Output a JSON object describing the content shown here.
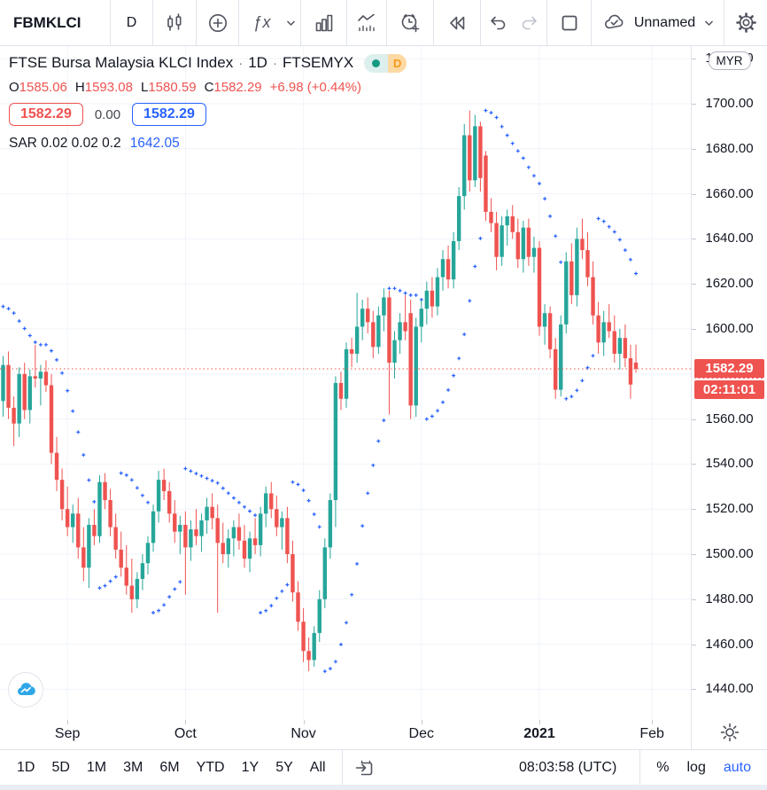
{
  "toolbar_top": {
    "symbol": "FBMKLCI",
    "interval": "D",
    "layout_name": "Unnamed",
    "icons": [
      "candlestick-style-icon",
      "compare-add-icon",
      "indicators-fx-icon",
      "chevron-down-icon",
      "indicator-templates-icon",
      "chart-patterns-icon",
      "alert-clock-plus-icon",
      "bar-replay-icon",
      "undo-icon",
      "redo-icon",
      "layout-square-icon",
      "cloud-save-icon",
      "settings-gear-icon"
    ]
  },
  "legend": {
    "title": "FTSE Bursa Malaysia KLCI Index",
    "sep": "·",
    "interval_label": "1D",
    "exchange": "FTSEMYX",
    "status_badge": {
      "letter": "D"
    },
    "ohlc": {
      "o_label": "O",
      "o": "1585.06",
      "h_label": "H",
      "h": "1593.08",
      "l_label": "L",
      "l": "1580.59",
      "c_label": "C",
      "c": "1582.29",
      "change": "+6.98 (+0.44%)"
    },
    "quote_boxes": {
      "sell": "1582.29",
      "spread": "0.00",
      "buy": "1582.29"
    },
    "indicator": {
      "name": "SAR",
      "params": "0.02 0.02 0.2",
      "value": "1642.05"
    }
  },
  "price_axis": {
    "currency_badge": "MYR",
    "ticks": [
      "1440.00",
      "1460.00",
      "1480.00",
      "1500.00",
      "1520.00",
      "1540.00",
      "1560.00",
      "1580.00",
      "1600.00",
      "1620.00",
      "1640.00",
      "1660.00",
      "1680.00",
      "1700.00",
      "1720.00"
    ],
    "hidden_ticks": [
      "1580.00"
    ],
    "last_price": "1582.29",
    "countdown": "02:11:01"
  },
  "toolbar_bottom": {
    "ranges": [
      "1D",
      "5D",
      "1M",
      "3M",
      "6M",
      "YTD",
      "1Y",
      "5Y",
      "All"
    ],
    "clock": "08:03:58 (UTC)",
    "percent": "%",
    "log": "log",
    "auto": "auto"
  },
  "chart_data": {
    "type": "candlestick",
    "title": "FTSE Bursa Malaysia KLCI Index",
    "interval": "1D",
    "exchange": "FTSEMYX",
    "currency": "MYR",
    "ylim": [
      1435,
      1725
    ],
    "yticks": [
      1440,
      1460,
      1480,
      1500,
      1520,
      1540,
      1560,
      1580,
      1600,
      1620,
      1640,
      1660,
      1680,
      1700,
      1720
    ],
    "grid": true,
    "last_price": 1582.29,
    "change": 6.98,
    "change_pct": 0.44,
    "months": [
      {
        "label": "Sep",
        "index": 12
      },
      {
        "label": "Oct",
        "index": 34
      },
      {
        "label": "Nov",
        "index": 56
      },
      {
        "label": "Dec",
        "index": 78
      },
      {
        "label": "2021",
        "index": 100,
        "bold": true
      },
      {
        "label": "Feb",
        "index": 121
      }
    ],
    "indicator": {
      "name": "Parabolic SAR",
      "start": 0.02,
      "increment": 0.02,
      "max": 0.2,
      "last_value": 1642.05
    },
    "colors": {
      "up": "#26a69a",
      "down": "#ef5350",
      "sar": "#2962ff",
      "grid": "#f0f3fa",
      "price_line": "#ef5350"
    },
    "candles": [
      [
        1568,
        1588,
        1561,
        1584
      ],
      [
        1584,
        1590,
        1560,
        1565
      ],
      [
        1565,
        1570,
        1548,
        1558
      ],
      [
        1558,
        1583,
        1552,
        1580
      ],
      [
        1580,
        1585,
        1560,
        1564
      ],
      [
        1564,
        1582,
        1558,
        1579
      ],
      [
        1579,
        1593,
        1574,
        1578
      ],
      [
        1578,
        1584,
        1566,
        1581
      ],
      [
        1581,
        1586,
        1572,
        1575
      ],
      [
        1575,
        1580,
        1540,
        1545
      ],
      [
        1545,
        1552,
        1528,
        1533
      ],
      [
        1533,
        1538,
        1515,
        1520
      ],
      [
        1520,
        1530,
        1508,
        1512
      ],
      [
        1512,
        1522,
        1505,
        1518
      ],
      [
        1518,
        1525,
        1498,
        1503
      ],
      [
        1503,
        1512,
        1488,
        1494
      ],
      [
        1494,
        1516,
        1485,
        1513
      ],
      [
        1513,
        1520,
        1504,
        1508
      ],
      [
        1508,
        1535,
        1505,
        1532
      ],
      [
        1532,
        1536,
        1520,
        1524
      ],
      [
        1524,
        1529,
        1508,
        1512
      ],
      [
        1512,
        1518,
        1498,
        1502
      ],
      [
        1502,
        1510,
        1490,
        1494
      ],
      [
        1494,
        1504,
        1482,
        1486
      ],
      [
        1486,
        1498,
        1474,
        1480
      ],
      [
        1480,
        1492,
        1476,
        1489
      ],
      [
        1489,
        1500,
        1484,
        1496
      ],
      [
        1496,
        1508,
        1491,
        1505
      ],
      [
        1505,
        1522,
        1501,
        1519
      ],
      [
        1519,
        1537,
        1514,
        1533
      ],
      [
        1533,
        1538,
        1524,
        1528
      ],
      [
        1528,
        1532,
        1514,
        1518
      ],
      [
        1518,
        1524,
        1505,
        1510
      ],
      [
        1510,
        1517,
        1500,
        1513
      ],
      [
        1513,
        1519,
        1482,
        1503
      ],
      [
        1503,
        1515,
        1497,
        1511
      ],
      [
        1511,
        1520,
        1504,
        1508
      ],
      [
        1508,
        1518,
        1501,
        1515
      ],
      [
        1515,
        1525,
        1509,
        1521
      ],
      [
        1521,
        1527,
        1511,
        1516
      ],
      [
        1516,
        1522,
        1474,
        1505
      ],
      [
        1505,
        1514,
        1496,
        1500
      ],
      [
        1500,
        1511,
        1494,
        1507
      ],
      [
        1507,
        1515,
        1499,
        1512
      ],
      [
        1512,
        1518,
        1502,
        1506
      ],
      [
        1506,
        1513,
        1494,
        1498
      ],
      [
        1498,
        1510,
        1492,
        1507
      ],
      [
        1507,
        1516,
        1500,
        1504
      ],
      [
        1504,
        1521,
        1499,
        1518
      ],
      [
        1518,
        1530,
        1512,
        1527
      ],
      [
        1527,
        1532,
        1516,
        1520
      ],
      [
        1520,
        1526,
        1508,
        1512
      ],
      [
        1512,
        1519,
        1502,
        1516
      ],
      [
        1516,
        1521,
        1496,
        1500
      ],
      [
        1500,
        1506,
        1479,
        1483
      ],
      [
        1483,
        1488,
        1466,
        1470
      ],
      [
        1470,
        1476,
        1452,
        1457
      ],
      [
        1457,
        1463,
        1448,
        1453
      ],
      [
        1453,
        1468,
        1450,
        1465
      ],
      [
        1465,
        1484,
        1461,
        1480
      ],
      [
        1480,
        1507,
        1476,
        1503
      ],
      [
        1503,
        1527,
        1498,
        1524
      ],
      [
        1524,
        1579,
        1512,
        1576
      ],
      [
        1576,
        1581,
        1564,
        1569
      ],
      [
        1569,
        1594,
        1565,
        1591
      ],
      [
        1591,
        1596,
        1583,
        1589
      ],
      [
        1589,
        1616,
        1585,
        1601
      ],
      [
        1601,
        1613,
        1595,
        1609
      ],
      [
        1609,
        1614,
        1598,
        1603
      ],
      [
        1603,
        1608,
        1587,
        1592
      ],
      [
        1592,
        1610,
        1589,
        1606
      ],
      [
        1606,
        1618,
        1599,
        1614
      ],
      [
        1614,
        1617,
        1562,
        1585
      ],
      [
        1585,
        1599,
        1578,
        1595
      ],
      [
        1595,
        1607,
        1589,
        1603
      ],
      [
        1603,
        1615,
        1595,
        1599
      ],
      [
        1607,
        1613,
        1560,
        1566
      ],
      [
        1566,
        1605,
        1561,
        1601
      ],
      [
        1601,
        1613,
        1594,
        1609
      ],
      [
        1609,
        1621,
        1602,
        1617
      ],
      [
        1617,
        1623,
        1605,
        1610
      ],
      [
        1610,
        1627,
        1606,
        1623
      ],
      [
        1623,
        1635,
        1617,
        1631
      ],
      [
        1631,
        1637,
        1618,
        1622
      ],
      [
        1622,
        1643,
        1618,
        1639
      ],
      [
        1639,
        1663,
        1635,
        1659
      ],
      [
        1659,
        1691,
        1653,
        1686
      ],
      [
        1686,
        1697,
        1661,
        1666
      ],
      [
        1666,
        1695,
        1663,
        1690
      ],
      [
        1690,
        1692,
        1661,
        1667
      ],
      [
        1677,
        1679,
        1648,
        1652
      ],
      [
        1652,
        1658,
        1643,
        1647
      ],
      [
        1647,
        1652,
        1626,
        1632
      ],
      [
        1632,
        1650,
        1628,
        1646
      ],
      [
        1646,
        1653,
        1637,
        1650
      ],
      [
        1650,
        1655,
        1640,
        1643
      ],
      [
        1643,
        1649,
        1627,
        1631
      ],
      [
        1631,
        1648,
        1625,
        1645
      ],
      [
        1645,
        1649,
        1628,
        1632
      ],
      [
        1632,
        1641,
        1625,
        1636
      ],
      [
        1636,
        1639,
        1597,
        1601
      ],
      [
        1601,
        1611,
        1593,
        1607
      ],
      [
        1607,
        1610,
        1587,
        1591
      ],
      [
        1591,
        1596,
        1569,
        1573
      ],
      [
        1573,
        1606,
        1570,
        1602
      ],
      [
        1602,
        1634,
        1598,
        1630
      ],
      [
        1630,
        1638,
        1611,
        1615
      ],
      [
        1615,
        1645,
        1610,
        1640
      ],
      [
        1640,
        1649,
        1631,
        1635
      ],
      [
        1635,
        1643,
        1619,
        1623
      ],
      [
        1623,
        1630,
        1602,
        1606
      ],
      [
        1606,
        1612,
        1589,
        1594
      ],
      [
        1594,
        1608,
        1588,
        1603
      ],
      [
        1603,
        1611,
        1596,
        1599
      ],
      [
        1599,
        1606,
        1585,
        1589
      ],
      [
        1589,
        1600,
        1582,
        1596
      ],
      [
        1596,
        1602,
        1583,
        1587
      ],
      [
        1587,
        1593,
        1569,
        1575.31
      ],
      [
        1585.06,
        1593.08,
        1580.59,
        1582.29
      ]
    ]
  }
}
